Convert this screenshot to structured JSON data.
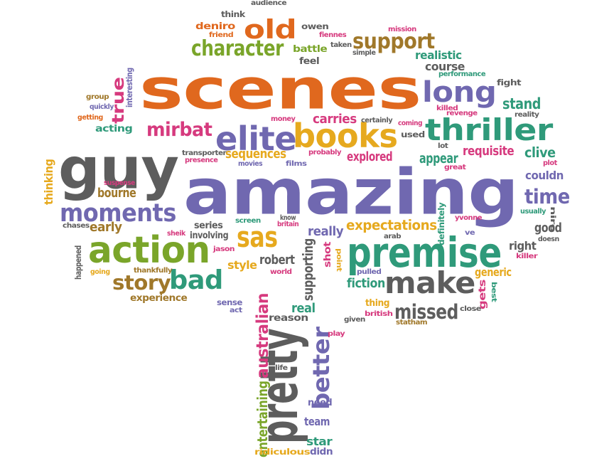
{
  "palette": {
    "orange": "#e0681e",
    "purple": "#7068b0",
    "gold": "#e6a91e",
    "green": "#2f9a7a",
    "gray": "#5d5d5d",
    "brown": "#a0782a",
    "pink": "#d63a7e",
    "lime": "#7aa52a"
  },
  "words": [
    {
      "text": "amazing",
      "color": "purple"
    },
    {
      "text": "scenes",
      "color": "orange"
    },
    {
      "text": "guy",
      "color": "gray"
    },
    {
      "text": "premise",
      "color": "green"
    },
    {
      "text": "action",
      "color": "lime"
    },
    {
      "text": "pretty",
      "color": "gray"
    },
    {
      "text": "thriller",
      "color": "green"
    },
    {
      "text": "books",
      "color": "gold"
    },
    {
      "text": "elite",
      "color": "purple"
    },
    {
      "text": "make",
      "color": "gray"
    },
    {
      "text": "long",
      "color": "purple"
    },
    {
      "text": "old",
      "color": "orange"
    },
    {
      "text": "sas",
      "color": "gold"
    },
    {
      "text": "moments",
      "color": "purple"
    },
    {
      "text": "bad",
      "color": "green"
    },
    {
      "text": "better",
      "color": "purple"
    },
    {
      "text": "character",
      "color": "lime"
    },
    {
      "text": "support",
      "color": "brown"
    },
    {
      "text": "missed",
      "color": "gray"
    },
    {
      "text": "story",
      "color": "brown"
    },
    {
      "text": "time",
      "color": "purple"
    },
    {
      "text": "true",
      "color": "pink"
    },
    {
      "text": "mirbat",
      "color": "pink"
    },
    {
      "text": "expectations",
      "color": "gold"
    },
    {
      "text": "stand",
      "color": "green"
    },
    {
      "text": "carries",
      "color": "pink"
    },
    {
      "text": "sequences",
      "color": "gold"
    },
    {
      "text": "requisite",
      "color": "pink"
    },
    {
      "text": "clive",
      "color": "green"
    },
    {
      "text": "appear",
      "color": "green"
    },
    {
      "text": "explored",
      "color": "pink"
    },
    {
      "text": "bourne",
      "color": "brown"
    },
    {
      "text": "early",
      "color": "brown"
    },
    {
      "text": "real",
      "color": "green"
    },
    {
      "text": "australian",
      "color": "pink"
    },
    {
      "text": "entertaining",
      "color": "lime"
    },
    {
      "text": "supporting",
      "color": "gray"
    },
    {
      "text": "really",
      "color": "purple"
    },
    {
      "text": "robert",
      "color": "gray"
    },
    {
      "text": "style",
      "color": "gold"
    },
    {
      "text": "series",
      "color": "gray"
    },
    {
      "text": "involving",
      "color": "gray"
    },
    {
      "text": "fiction",
      "color": "green"
    },
    {
      "text": "thing",
      "color": "gold"
    },
    {
      "text": "generic",
      "color": "gold"
    },
    {
      "text": "gets",
      "color": "pink"
    },
    {
      "text": "course",
      "color": "gray"
    },
    {
      "text": "realistic",
      "color": "green"
    },
    {
      "text": "battle",
      "color": "lime"
    },
    {
      "text": "feel",
      "color": "gray"
    },
    {
      "text": "acting",
      "color": "green"
    },
    {
      "text": "couldn",
      "color": "purple"
    },
    {
      "text": "good",
      "color": "gray"
    },
    {
      "text": "right",
      "color": "gray"
    },
    {
      "text": "need",
      "color": "purple"
    },
    {
      "text": "team",
      "color": "purple"
    },
    {
      "text": "star",
      "color": "green"
    },
    {
      "text": "didn",
      "color": "purple"
    },
    {
      "text": "reason",
      "color": "gray"
    },
    {
      "text": "experience",
      "color": "brown"
    },
    {
      "text": "shot",
      "color": "pink"
    },
    {
      "text": "deniro",
      "color": "orange"
    },
    {
      "text": "owen",
      "color": "gray"
    },
    {
      "text": "fight",
      "color": "gray"
    },
    {
      "text": "thinking",
      "color": "gold"
    },
    {
      "text": "used",
      "color": "gray"
    },
    {
      "text": "ridiculous",
      "color": "gold"
    },
    {
      "text": "sense",
      "color": "purple"
    },
    {
      "text": "audience",
      "color": "gray"
    },
    {
      "text": "think",
      "color": "gray"
    },
    {
      "text": "friend",
      "color": "orange"
    },
    {
      "text": "fiennes",
      "color": "pink"
    },
    {
      "text": "taken",
      "color": "gray"
    },
    {
      "text": "simple",
      "color": "gray"
    },
    {
      "text": "mission",
      "color": "pink"
    },
    {
      "text": "performance",
      "color": "green"
    },
    {
      "text": "interesting",
      "color": "purple"
    },
    {
      "text": "group",
      "color": "brown"
    },
    {
      "text": "quickly",
      "color": "purple"
    },
    {
      "text": "getting",
      "color": "orange"
    },
    {
      "text": "money",
      "color": "pink"
    },
    {
      "text": "killed",
      "color": "pink"
    },
    {
      "text": "revenge",
      "color": "pink"
    },
    {
      "text": "reality",
      "color": "gray"
    },
    {
      "text": "certainly",
      "color": "gray"
    },
    {
      "text": "coming",
      "color": "pink"
    },
    {
      "text": "lot",
      "color": "gray"
    },
    {
      "text": "plot",
      "color": "pink"
    },
    {
      "text": "great",
      "color": "pink"
    },
    {
      "text": "probably",
      "color": "pink"
    },
    {
      "text": "transporter",
      "color": "gray"
    },
    {
      "text": "presence",
      "color": "pink"
    },
    {
      "text": "movies",
      "color": "purple"
    },
    {
      "text": "films",
      "color": "purple"
    },
    {
      "text": "suspense",
      "color": "pink"
    },
    {
      "text": "chases",
      "color": "gray"
    },
    {
      "text": "sheik",
      "color": "pink"
    },
    {
      "text": "screen",
      "color": "green"
    },
    {
      "text": "know",
      "color": "gray"
    },
    {
      "text": "britain",
      "color": "pink"
    },
    {
      "text": "arab",
      "color": "gray"
    },
    {
      "text": "definitely",
      "color": "green"
    },
    {
      "text": "yvonne",
      "color": "pink"
    },
    {
      "text": "usually",
      "color": "green"
    },
    {
      "text": "niro",
      "color": "gray"
    },
    {
      "text": "doesn",
      "color": "gray"
    },
    {
      "text": "killer",
      "color": "pink"
    },
    {
      "text": "ve",
      "color": "purple"
    },
    {
      "text": "jason",
      "color": "pink"
    },
    {
      "text": "happened",
      "color": "gray"
    },
    {
      "text": "going",
      "color": "gold"
    },
    {
      "text": "thankfully",
      "color": "brown"
    },
    {
      "text": "world",
      "color": "pink"
    },
    {
      "text": "point",
      "color": "gold"
    },
    {
      "text": "pulled",
      "color": "purple"
    },
    {
      "text": "best",
      "color": "green"
    },
    {
      "text": "act",
      "color": "purple"
    },
    {
      "text": "british",
      "color": "pink"
    },
    {
      "text": "given",
      "color": "gray"
    },
    {
      "text": "close",
      "color": "gray"
    },
    {
      "text": "statham",
      "color": "brown"
    },
    {
      "text": "play",
      "color": "pink"
    },
    {
      "text": "life",
      "color": "gray"
    }
  ]
}
